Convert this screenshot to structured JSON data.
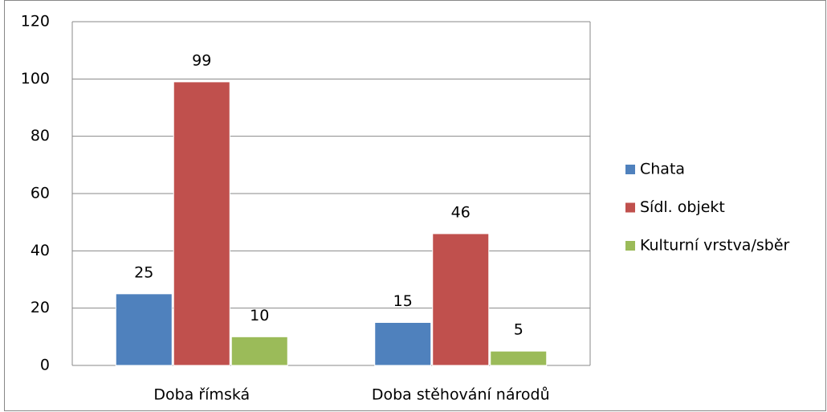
{
  "chart_data": {
    "type": "bar",
    "categories": [
      "Doba římská",
      "Doba stěhování národů"
    ],
    "series": [
      {
        "name": "Chata",
        "color": "#4f81bd",
        "values": [
          25,
          15
        ]
      },
      {
        "name": "Sídl. objekt",
        "color": "#c0504d",
        "values": [
          99,
          46
        ]
      },
      {
        "name": "Kulturní vrstva/sběr",
        "color": "#9bbb59",
        "values": [
          10,
          5
        ]
      }
    ],
    "ylim": [
      0,
      120
    ],
    "yticks": [
      0,
      20,
      40,
      60,
      80,
      100,
      120
    ],
    "grid": true,
    "legend": "right"
  }
}
